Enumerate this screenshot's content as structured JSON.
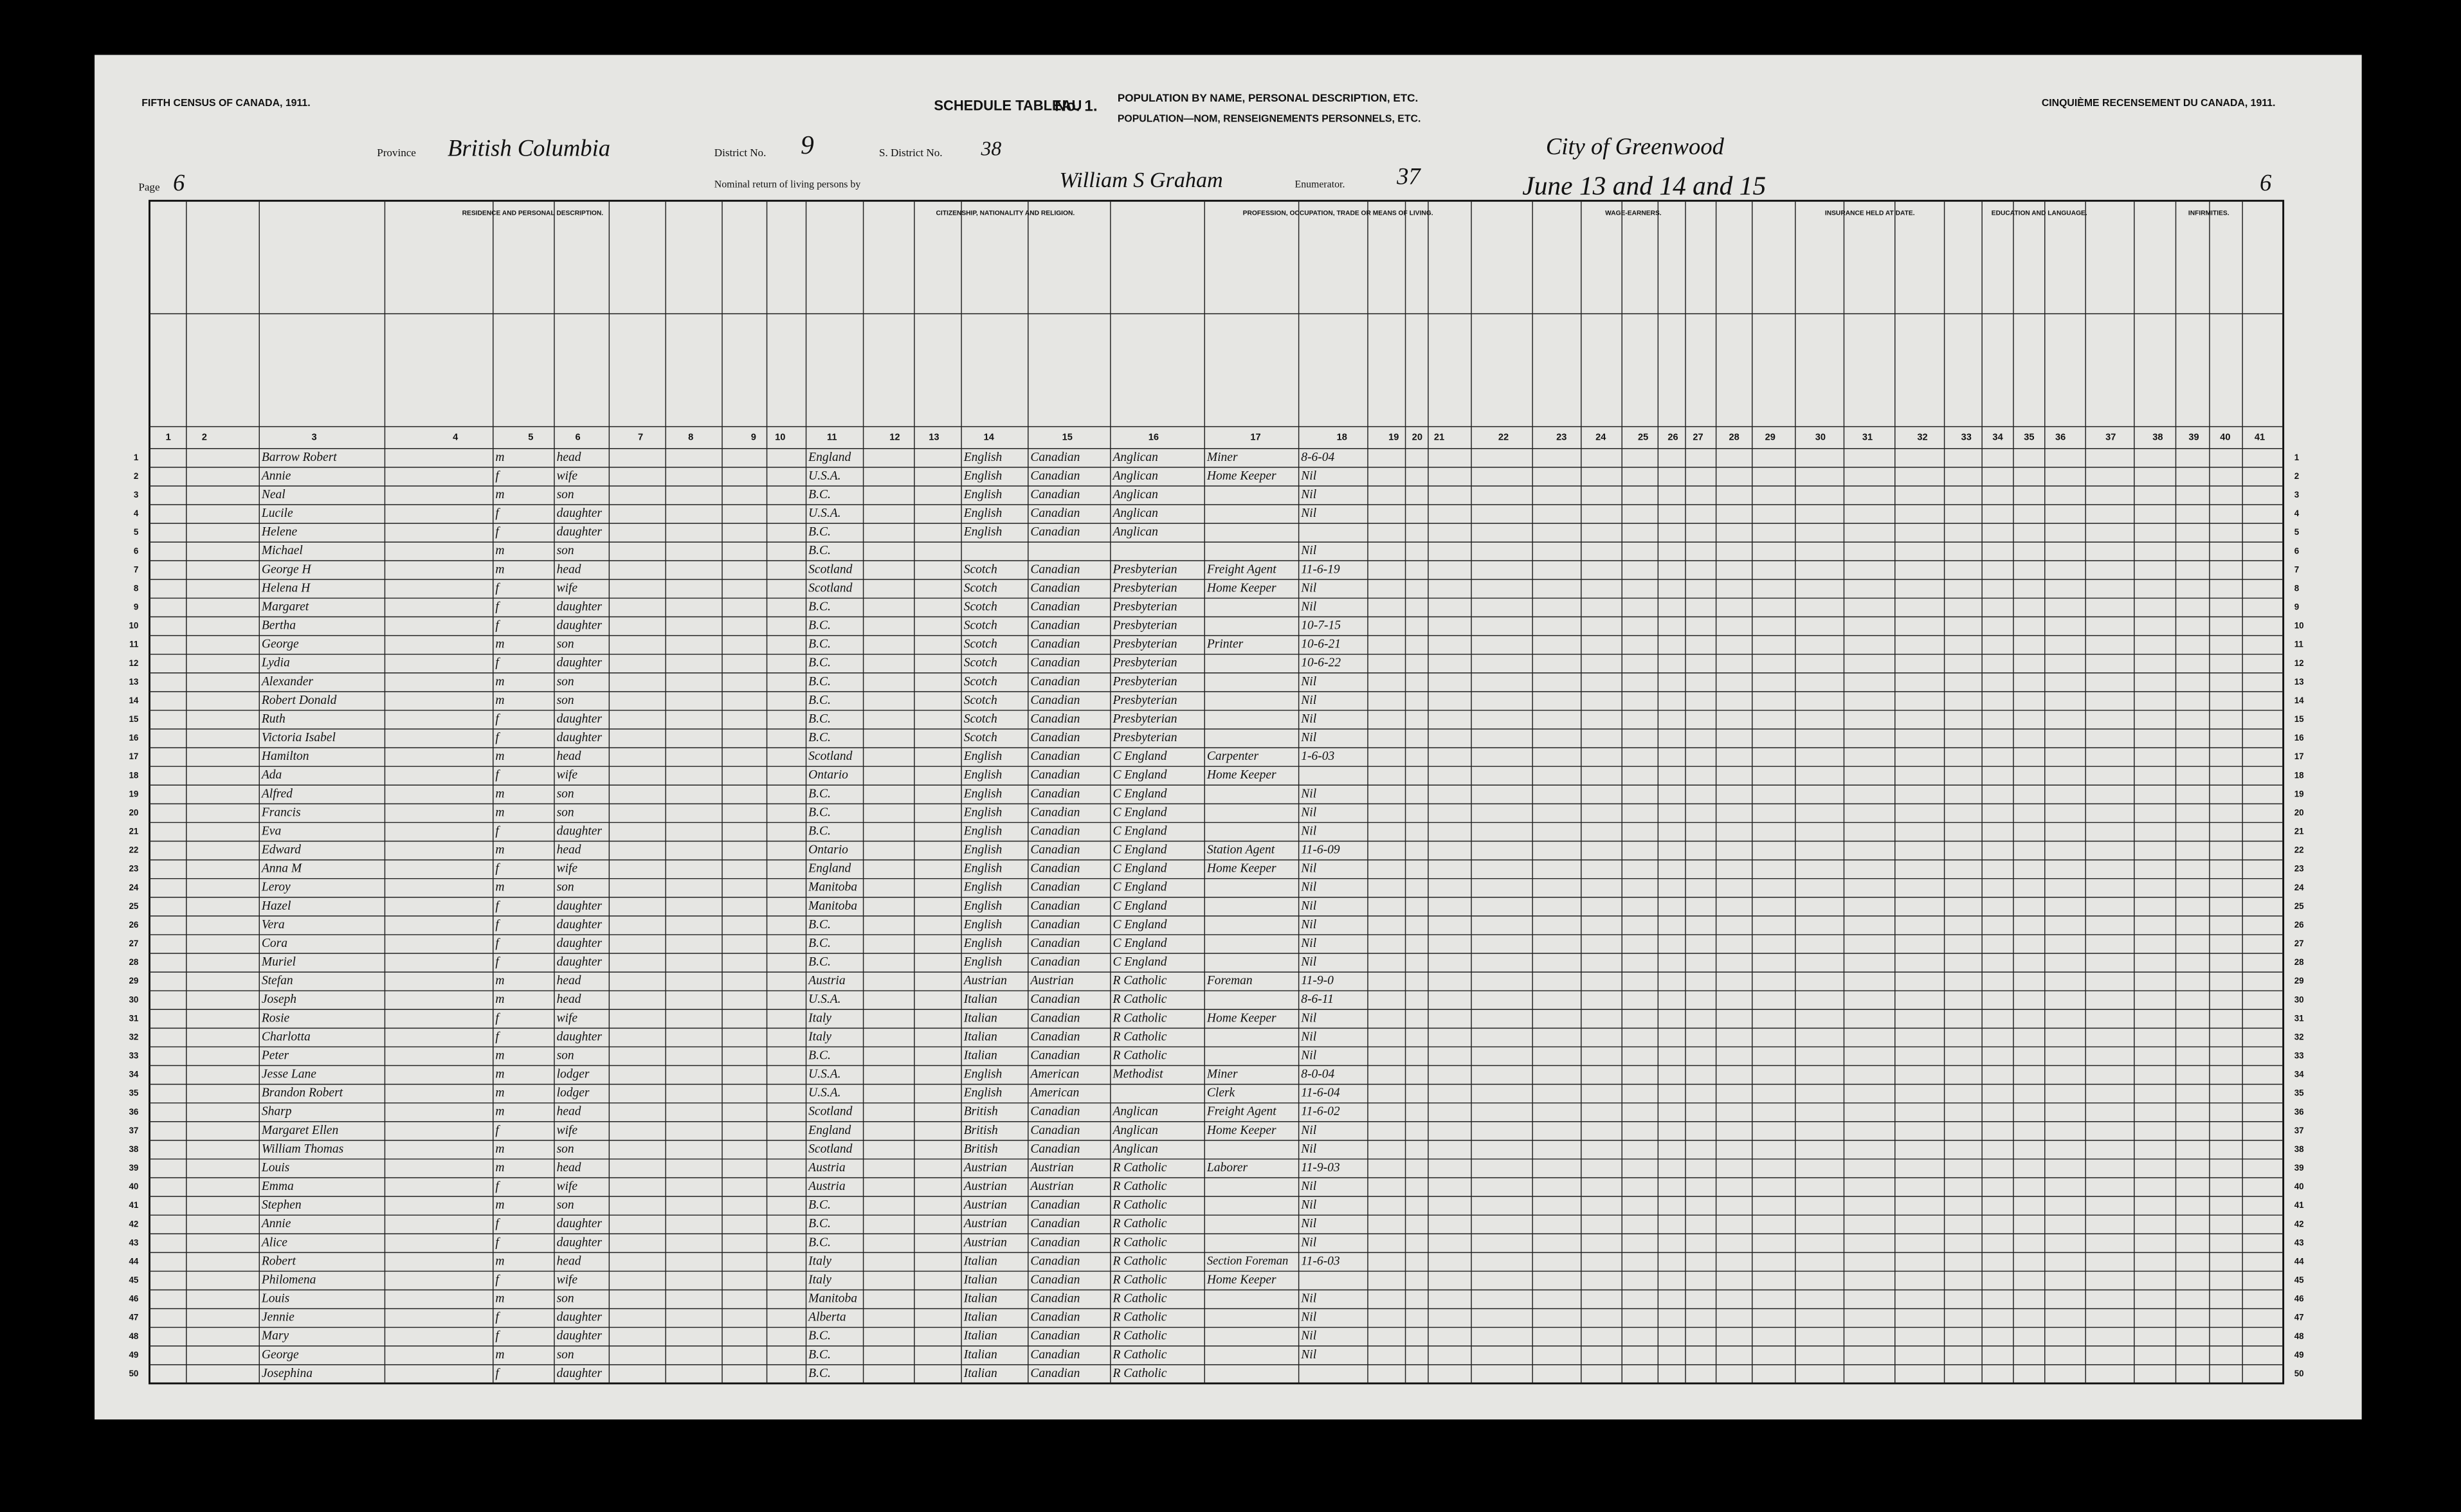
{
  "header": {
    "left_title": "FIFTH CENSUS OF CANADA, 1911.",
    "right_title": "CINQUIÈME RECENSEMENT DU CANADA, 1911.",
    "schedule": "SCHEDULE TABLEAU",
    "number": "No. 1.",
    "title_en": "POPULATION BY NAME, PERSONAL DESCRIPTION, ETC.",
    "title_fr": "POPULATION—NOM, RENSEIGNEMENTS PERSONNELS, ETC.",
    "province_label": "Province",
    "province": "British Columbia",
    "district_label": "District No.",
    "district": "9",
    "subdistrict_label": "S. District No.",
    "subdistrict": "38",
    "city": "City of Greenwood",
    "nominal_return": "Nominal return of living persons by",
    "enumerator": "William S Graham",
    "enumerator_label": "Enumerator.",
    "enumeration_no": "37",
    "dates": "June 13 and 14 and 15",
    "page_label": "Page",
    "page": "6",
    "page_right": "6"
  },
  "sections": [
    {
      "label": "RESIDENCE AND PERSONAL DESCRIPTION.",
      "from": 3,
      "to": 10
    },
    {
      "label": "CITIZENSHIP, NATIONALITY AND RELIGION.",
      "from": 11,
      "to": 16
    },
    {
      "label": "PROFESSION, OCCUPATION, TRADE OR MEANS OF LIVING.",
      "from": 17,
      "to": 21
    },
    {
      "label": "WAGE-EARNERS.",
      "from": 22,
      "to": 29
    },
    {
      "label": "INSURANCE HELD AT DATE.",
      "from": 30,
      "to": 32
    },
    {
      "label": "EDUCATION AND LANGUAGE.",
      "from": 33,
      "to": 37
    },
    {
      "label": "INFIRMITIES.",
      "from": 38,
      "to": 41
    }
  ],
  "column_numbers": [
    1,
    2,
    3,
    4,
    5,
    6,
    7,
    8,
    9,
    10,
    11,
    12,
    13,
    14,
    15,
    16,
    17,
    18,
    19,
    20,
    21,
    22,
    23,
    24,
    25,
    26,
    27,
    28,
    29,
    30,
    31,
    32,
    33,
    34,
    35,
    36,
    37,
    38,
    39,
    40,
    41
  ],
  "line_numbers": [
    1,
    2,
    3,
    4,
    5,
    6,
    7,
    8,
    9,
    10,
    11,
    12,
    13,
    14,
    15,
    16,
    17,
    18,
    19,
    20,
    21,
    22,
    23,
    24,
    25,
    26,
    27,
    28,
    29,
    30,
    31,
    32,
    33,
    34,
    35,
    36,
    37,
    38,
    39,
    40,
    41,
    42,
    43,
    44,
    45,
    46,
    47,
    48,
    49,
    50
  ],
  "rows": [
    {
      "3": "Barrow Robert",
      "5": "m",
      "6": "head",
      "11": "England",
      "14": "English",
      "15": "Canadian",
      "16": "Anglican",
      "17": "Miner",
      "18": "8-6-04"
    },
    {
      "3": "Annie",
      "5": "f",
      "6": "wife",
      "11": "U.S.A.",
      "14": "English",
      "15": "Canadian",
      "16": "Anglican",
      "17": "Home Keeper",
      "18": "Nil"
    },
    {
      "3": "Neal",
      "5": "m",
      "6": "son",
      "11": "B.C.",
      "14": "English",
      "15": "Canadian",
      "16": "Anglican",
      "18": "Nil"
    },
    {
      "3": "Lucile",
      "5": "f",
      "6": "daughter",
      "11": "U.S.A.",
      "14": "English",
      "15": "Canadian",
      "16": "Anglican",
      "18": "Nil"
    },
    {
      "3": "Helene",
      "5": "f",
      "6": "daughter",
      "11": "B.C.",
      "14": "English",
      "15": "Canadian",
      "16": "Anglican"
    },
    {
      "3": "Michael",
      "5": "m",
      "6": "son",
      "11": "B.C.",
      "18": "Nil"
    },
    {
      "3": "George H",
      "5": "m",
      "6": "head",
      "11": "Scotland",
      "14": "Scotch",
      "15": "Canadian",
      "16": "Presbyterian",
      "17": "Freight Agent",
      "18": "11-6-19"
    },
    {
      "3": "Helena H",
      "5": "f",
      "6": "wife",
      "11": "Scotland",
      "14": "Scotch",
      "15": "Canadian",
      "16": "Presbyterian",
      "17": "Home Keeper",
      "18": "Nil"
    },
    {
      "3": "Margaret",
      "5": "f",
      "6": "daughter",
      "11": "B.C.",
      "14": "Scotch",
      "15": "Canadian",
      "16": "Presbyterian",
      "18": "Nil"
    },
    {
      "3": "Bertha",
      "5": "f",
      "6": "daughter",
      "11": "B.C.",
      "14": "Scotch",
      "15": "Canadian",
      "16": "Presbyterian",
      "18": "10-7-15"
    },
    {
      "3": "George",
      "5": "m",
      "6": "son",
      "11": "B.C.",
      "14": "Scotch",
      "15": "Canadian",
      "16": "Presbyterian",
      "17": "Printer",
      "18": "10-6-21"
    },
    {
      "3": "Lydia",
      "5": "f",
      "6": "daughter",
      "11": "B.C.",
      "14": "Scotch",
      "15": "Canadian",
      "16": "Presbyterian",
      "18": "10-6-22"
    },
    {
      "3": "Alexander",
      "5": "m",
      "6": "son",
      "11": "B.C.",
      "14": "Scotch",
      "15": "Canadian",
      "16": "Presbyterian",
      "18": "Nil"
    },
    {
      "3": "Robert Donald",
      "5": "m",
      "6": "son",
      "11": "B.C.",
      "14": "Scotch",
      "15": "Canadian",
      "16": "Presbyterian",
      "18": "Nil"
    },
    {
      "3": "Ruth",
      "5": "f",
      "6": "daughter",
      "11": "B.C.",
      "14": "Scotch",
      "15": "Canadian",
      "16": "Presbyterian",
      "18": "Nil"
    },
    {
      "3": "Victoria Isabel",
      "5": "f",
      "6": "daughter",
      "11": "B.C.",
      "14": "Scotch",
      "15": "Canadian",
      "16": "Presbyterian",
      "18": "Nil"
    },
    {
      "3": "Hamilton",
      "5": "m",
      "6": "head",
      "11": "Scotland",
      "14": "English",
      "15": "Canadian",
      "16": "C England",
      "17": "Carpenter",
      "18": "1-6-03"
    },
    {
      "3": "Ada",
      "5": "f",
      "6": "wife",
      "11": "Ontario",
      "14": "English",
      "15": "Canadian",
      "16": "C England",
      "17": "Home Keeper"
    },
    {
      "3": "Alfred",
      "5": "m",
      "6": "son",
      "11": "B.C.",
      "14": "English",
      "15": "Canadian",
      "16": "C England",
      "18": "Nil"
    },
    {
      "3": "Francis",
      "5": "m",
      "6": "son",
      "11": "B.C.",
      "14": "English",
      "15": "Canadian",
      "16": "C England",
      "18": "Nil"
    },
    {
      "3": "Eva",
      "5": "f",
      "6": "daughter",
      "11": "B.C.",
      "14": "English",
      "15": "Canadian",
      "16": "C England",
      "18": "Nil"
    },
    {
      "3": "Edward",
      "5": "m",
      "6": "head",
      "11": "Ontario",
      "14": "English",
      "15": "Canadian",
      "16": "C England",
      "17": "Station Agent",
      "18": "11-6-09"
    },
    {
      "3": "Anna M",
      "5": "f",
      "6": "wife",
      "11": "England",
      "14": "English",
      "15": "Canadian",
      "16": "C England",
      "17": "Home Keeper",
      "18": "Nil"
    },
    {
      "3": "Leroy",
      "5": "m",
      "6": "son",
      "11": "Manitoba",
      "14": "English",
      "15": "Canadian",
      "16": "C England",
      "18": "Nil"
    },
    {
      "3": "Hazel",
      "5": "f",
      "6": "daughter",
      "11": "Manitoba",
      "14": "English",
      "15": "Canadian",
      "16": "C England",
      "18": "Nil"
    },
    {
      "3": "Vera",
      "5": "f",
      "6": "daughter",
      "11": "B.C.",
      "14": "English",
      "15": "Canadian",
      "16": "C England",
      "18": "Nil"
    },
    {
      "3": "Cora",
      "5": "f",
      "6": "daughter",
      "11": "B.C.",
      "14": "English",
      "15": "Canadian",
      "16": "C England",
      "18": "Nil"
    },
    {
      "3": "Muriel",
      "5": "f",
      "6": "daughter",
      "11": "B.C.",
      "14": "English",
      "15": "Canadian",
      "16": "C England",
      "18": "Nil"
    },
    {
      "3": "Stefan",
      "5": "m",
      "6": "head",
      "11": "Austria",
      "14": "Austrian",
      "15": "Austrian",
      "16": "R Catholic",
      "17": "Foreman",
      "18": "11-9-0"
    },
    {
      "3": "Joseph",
      "5": "m",
      "6": "head",
      "11": "U.S.A.",
      "14": "Italian",
      "15": "Canadian",
      "16": "R Catholic",
      "18": "8-6-11"
    },
    {
      "3": "Rosie",
      "5": "f",
      "6": "wife",
      "11": "Italy",
      "14": "Italian",
      "15": "Canadian",
      "16": "R Catholic",
      "17": "Home Keeper",
      "18": "Nil"
    },
    {
      "3": "Charlotta",
      "5": "f",
      "6": "daughter",
      "11": "Italy",
      "14": "Italian",
      "15": "Canadian",
      "16": "R Catholic",
      "18": "Nil"
    },
    {
      "3": "Peter",
      "5": "m",
      "6": "son",
      "11": "B.C.",
      "14": "Italian",
      "15": "Canadian",
      "16": "R Catholic",
      "18": "Nil"
    },
    {
      "3": "Jesse Lane",
      "5": "m",
      "6": "lodger",
      "11": "U.S.A.",
      "14": "English",
      "15": "American",
      "16": "Methodist",
      "17": "Miner",
      "18": "8-0-04"
    },
    {
      "3": "Brandon Robert",
      "5": "m",
      "6": "lodger",
      "11": "U.S.A.",
      "14": "English",
      "15": "American",
      "17": "Clerk",
      "18": "11-6-04"
    },
    {
      "3": "Sharp",
      "5": "m",
      "6": "head",
      "11": "Scotland",
      "14": "British",
      "15": "Canadian",
      "16": "Anglican",
      "17": "Freight Agent",
      "18": "11-6-02"
    },
    {
      "3": "Margaret Ellen",
      "5": "f",
      "6": "wife",
      "11": "England",
      "14": "British",
      "15": "Canadian",
      "16": "Anglican",
      "17": "Home Keeper",
      "18": "Nil"
    },
    {
      "3": "William Thomas",
      "5": "m",
      "6": "son",
      "11": "Scotland",
      "14": "British",
      "15": "Canadian",
      "16": "Anglican",
      "18": "Nil"
    },
    {
      "3": "Louis",
      "5": "m",
      "6": "head",
      "11": "Austria",
      "14": "Austrian",
      "15": "Austrian",
      "16": "R Catholic",
      "17": "Laborer",
      "18": "11-9-03"
    },
    {
      "3": "Emma",
      "5": "f",
      "6": "wife",
      "11": "Austria",
      "14": "Austrian",
      "15": "Austrian",
      "16": "R Catholic",
      "18": "Nil"
    },
    {
      "3": "Stephen",
      "5": "m",
      "6": "son",
      "11": "B.C.",
      "14": "Austrian",
      "15": "Canadian",
      "16": "R Catholic",
      "18": "Nil"
    },
    {
      "3": "Annie",
      "5": "f",
      "6": "daughter",
      "11": "B.C.",
      "14": "Austrian",
      "15": "Canadian",
      "16": "R Catholic",
      "18": "Nil"
    },
    {
      "3": "Alice",
      "5": "f",
      "6": "daughter",
      "11": "B.C.",
      "14": "Austrian",
      "15": "Canadian",
      "16": "R Catholic",
      "18": "Nil"
    },
    {
      "3": "Robert",
      "5": "m",
      "6": "head",
      "11": "Italy",
      "14": "Italian",
      "15": "Canadian",
      "16": "R Catholic",
      "17": "Section Foreman",
      "18": "11-6-03"
    },
    {
      "3": "Philomena",
      "5": "f",
      "6": "wife",
      "11": "Italy",
      "14": "Italian",
      "15": "Canadian",
      "16": "R Catholic",
      "17": "Home Keeper"
    },
    {
      "3": "Louis",
      "5": "m",
      "6": "son",
      "11": "Manitoba",
      "14": "Italian",
      "15": "Canadian",
      "16": "R Catholic",
      "18": "Nil"
    },
    {
      "3": "Jennie",
      "5": "f",
      "6": "daughter",
      "11": "Alberta",
      "14": "Italian",
      "15": "Canadian",
      "16": "R Catholic",
      "18": "Nil"
    },
    {
      "3": "Mary",
      "5": "f",
      "6": "daughter",
      "11": "B.C.",
      "14": "Italian",
      "15": "Canadian",
      "16": "R Catholic",
      "18": "Nil"
    },
    {
      "3": "George",
      "5": "m",
      "6": "son",
      "11": "B.C.",
      "14": "Italian",
      "15": "Canadian",
      "16": "R Catholic",
      "18": "Nil"
    },
    {
      "3": "Josephina",
      "5": "f",
      "6": "daughter",
      "11": "B.C.",
      "14": "Italian",
      "15": "Canadian",
      "16": "R Catholic"
    }
  ]
}
